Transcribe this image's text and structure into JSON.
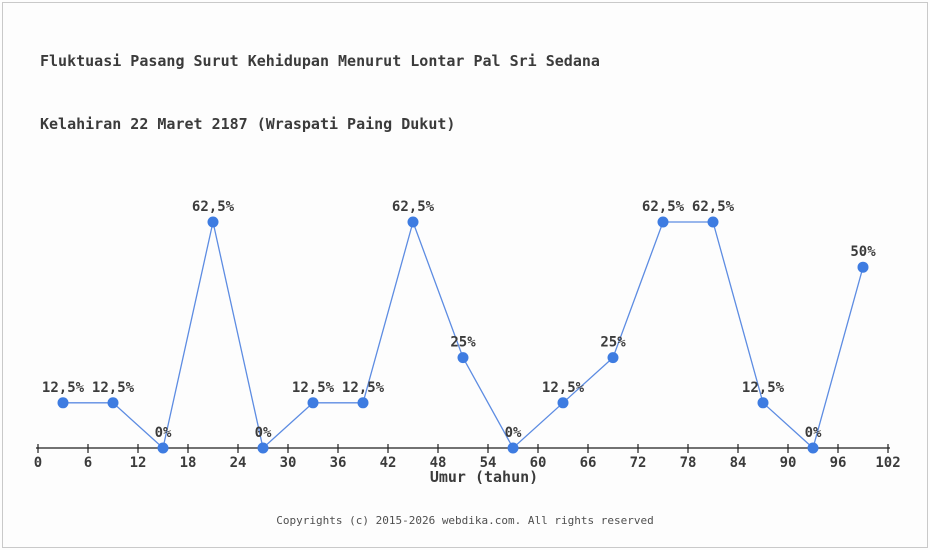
{
  "page": {
    "background_color": "#fdfdfd",
    "frame_border_color": "#c9c9c9"
  },
  "title": {
    "line1": "Fluktuasi Pasang Surut Kehidupan Menurut Lontar Pal Sri Sedana",
    "line2": "Kelahiran 22 Maret 2187 (Wraspati Paing Dukut)"
  },
  "footer": {
    "text": "Copyrights (c) 2015-2026 webdika.com. All rights reserved"
  },
  "chart_data": {
    "type": "line",
    "title": "Fluktuasi Pasang Surut Kehidupan Menurut Lontar Pal Sri Sedana Kelahiran 22 Maret 2187 (Wraspati Paing Dukut)",
    "xlabel": "Umur (tahun)",
    "ylabel": "",
    "x": [
      3,
      9,
      15,
      21,
      27,
      33,
      39,
      45,
      51,
      57,
      63,
      69,
      75,
      81,
      87,
      93,
      99
    ],
    "values": [
      12.5,
      12.5,
      0,
      62.5,
      0,
      12.5,
      12.5,
      62.5,
      25,
      0,
      12.5,
      25,
      62.5,
      62.5,
      12.5,
      0,
      50
    ],
    "point_labels": [
      "12,5%",
      "12,5%",
      "0%",
      "62,5%",
      "0%",
      "12,5%",
      "12,5%",
      "62,5%",
      "25%",
      "0%",
      "12,5%",
      "25%",
      "62,5%",
      "62,5%",
      "12,5%",
      "0%",
      "50%"
    ],
    "x_ticks": [
      0,
      6,
      12,
      18,
      24,
      30,
      36,
      42,
      48,
      54,
      60,
      66,
      72,
      78,
      84,
      90,
      96,
      102
    ],
    "xlim": [
      0,
      102
    ],
    "ylim": [
      0,
      70
    ],
    "grid": false,
    "legend": null,
    "line_color": "#5d8ce2",
    "marker_color": "#3e7ce1",
    "axis_color": "#1f1f1f",
    "text_color": "#3b3b3b"
  }
}
